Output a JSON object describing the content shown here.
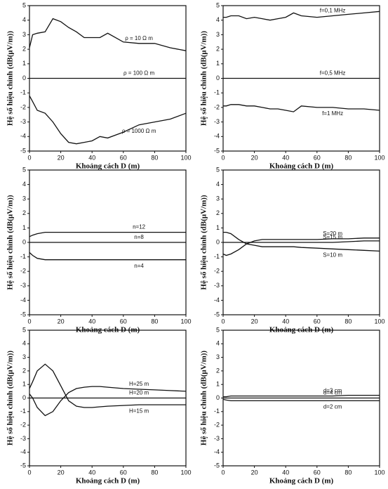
{
  "chart_data": [
    {
      "type": "line",
      "xlabel": "Khoảng cách D (m)",
      "ylabel": "Hệ số hiệu chỉnh (dB(μV/m))",
      "x": [
        0,
        2,
        5,
        10,
        15,
        20,
        25,
        30,
        35,
        40,
        45,
        50,
        60,
        70,
        80,
        90,
        100
      ],
      "xlim": [
        0,
        100
      ],
      "xticks": [
        0,
        20,
        40,
        60,
        80,
        100
      ],
      "ylim": [
        -5,
        5
      ],
      "yticks": [
        -5,
        -4,
        -3,
        -2,
        -1,
        0,
        1,
        2,
        3,
        4,
        5
      ],
      "series": [
        {
          "name": "ρ = 10 Ω m",
          "color": "#111",
          "values": [
            2.1,
            3.0,
            3.1,
            3.2,
            4.1,
            3.9,
            3.5,
            3.2,
            2.8,
            2.8,
            2.8,
            3.1,
            2.5,
            2.4,
            2.4,
            2.1,
            1.9
          ]
        },
        {
          "name": "ρ = 100 Ω m",
          "color": "#111",
          "values": [
            0,
            0,
            0,
            0,
            0,
            0,
            0,
            0,
            0,
            0,
            0,
            0,
            0,
            0,
            0,
            0,
            0
          ]
        },
        {
          "name": "ρ = 1000 Ω m",
          "color": "#111",
          "values": [
            -1.2,
            -1.6,
            -2.2,
            -2.4,
            -3.0,
            -3.8,
            -4.4,
            -4.5,
            -4.4,
            -4.3,
            -4.0,
            -4.1,
            -3.7,
            -3.2,
            -3.0,
            -2.8,
            -2.4
          ]
        }
      ]
    },
    {
      "type": "line",
      "xlabel": "Khoảng cách D (m)",
      "ylabel": "Hệ số hiệu chỉnh (dB(μV/m))",
      "x": [
        0,
        2,
        5,
        10,
        15,
        20,
        25,
        30,
        35,
        40,
        45,
        50,
        60,
        70,
        80,
        90,
        100
      ],
      "xlim": [
        0,
        100
      ],
      "xticks": [
        0,
        20,
        40,
        60,
        80,
        100
      ],
      "ylim": [
        -5,
        5
      ],
      "yticks": [
        -5,
        -4,
        -3,
        -2,
        -1,
        0,
        1,
        2,
        3,
        4,
        5
      ],
      "series": [
        {
          "name": "f=0,1 MHz",
          "color": "#111",
          "values": [
            4.2,
            4.2,
            4.3,
            4.3,
            4.1,
            4.2,
            4.1,
            4.0,
            4.1,
            4.2,
            4.5,
            4.3,
            4.2,
            4.3,
            4.4,
            4.5,
            4.6
          ]
        },
        {
          "name": "f=0,5 MHz",
          "color": "#111",
          "values": [
            0,
            0,
            0,
            0,
            0,
            0,
            0,
            0,
            0,
            0,
            0,
            0,
            0,
            0,
            0,
            0,
            0
          ]
        },
        {
          "name": "f=1 MHz",
          "color": "#111",
          "values": [
            -1.9,
            -1.9,
            -1.8,
            -1.8,
            -1.9,
            -1.9,
            -2.0,
            -2.1,
            -2.1,
            -2.2,
            -2.3,
            -1.9,
            -2.0,
            -2.0,
            -2.1,
            -2.1,
            -2.2
          ]
        }
      ]
    },
    {
      "type": "line",
      "xlabel": "Khoảng cách D (m)",
      "ylabel": "Hệ số hiệu chỉnh (dB(μV/m))",
      "x": [
        0,
        2,
        5,
        10,
        15,
        20,
        25,
        30,
        35,
        40,
        45,
        50,
        60,
        70,
        80,
        90,
        100
      ],
      "xlim": [
        0,
        100
      ],
      "xticks": [
        0,
        20,
        40,
        60,
        80,
        100
      ],
      "ylim": [
        -5,
        5
      ],
      "yticks": [
        -5,
        -4,
        -3,
        -2,
        -1,
        0,
        1,
        2,
        3,
        4,
        5
      ],
      "series": [
        {
          "name": "n=12",
          "color": "#111",
          "values": [
            0.4,
            0.5,
            0.6,
            0.7,
            0.7,
            0.7,
            0.7,
            0.7,
            0.7,
            0.7,
            0.7,
            0.7,
            0.7,
            0.7,
            0.7,
            0.7,
            0.7
          ]
        },
        {
          "name": "n=8",
          "color": "#111",
          "values": [
            0,
            0,
            0,
            0,
            0,
            0,
            0,
            0,
            0,
            0,
            0,
            0,
            0,
            0,
            0,
            0,
            0
          ]
        },
        {
          "name": "n=4",
          "color": "#111",
          "values": [
            -0.7,
            -0.9,
            -1.1,
            -1.2,
            -1.2,
            -1.2,
            -1.2,
            -1.2,
            -1.2,
            -1.2,
            -1.2,
            -1.2,
            -1.2,
            -1.2,
            -1.2,
            -1.2,
            -1.2
          ]
        }
      ]
    },
    {
      "type": "line",
      "xlabel": "Khoảng cách D (m)",
      "ylabel": "Hệ số hiệu chỉnh (dB(μV/m))",
      "x": [
        0,
        2,
        5,
        10,
        15,
        20,
        25,
        30,
        35,
        40,
        45,
        50,
        60,
        70,
        80,
        90,
        100
      ],
      "xlim": [
        0,
        100
      ],
      "xticks": [
        0,
        20,
        40,
        60,
        80,
        100
      ],
      "ylim": [
        -5,
        5
      ],
      "yticks": [
        -5,
        -4,
        -3,
        -2,
        -1,
        0,
        1,
        2,
        3,
        4,
        5
      ],
      "series": [
        {
          "name": "S=15 m",
          "color": "#111",
          "values": [
            0,
            0,
            0,
            0,
            0,
            0,
            0,
            0,
            0,
            0,
            0,
            0,
            0,
            0,
            0.05,
            0.1,
            0.1
          ]
        },
        {
          "name": "S=20 m",
          "color": "#111",
          "values": [
            -0.8,
            -0.9,
            -0.8,
            -0.5,
            -0.1,
            0.1,
            0.2,
            0.2,
            0.2,
            0.2,
            0.2,
            0.2,
            0.2,
            0.25,
            0.25,
            0.3,
            0.3
          ]
        },
        {
          "name": "S=10 m",
          "color": "#111",
          "values": [
            0.7,
            0.7,
            0.6,
            0.2,
            -0.1,
            -0.2,
            -0.3,
            -0.3,
            -0.3,
            -0.3,
            -0.3,
            -0.35,
            -0.4,
            -0.45,
            -0.5,
            -0.55,
            -0.6
          ]
        }
      ]
    },
    {
      "type": "line",
      "xlabel": "Khoảng cách D (m)",
      "ylabel": "Hệ số hiệu chỉnh (dB(μV/m))",
      "x": [
        0,
        2,
        5,
        10,
        15,
        20,
        25,
        30,
        35,
        40,
        45,
        50,
        60,
        70,
        80,
        90,
        100
      ],
      "xlim": [
        0,
        100
      ],
      "xticks": [
        0,
        20,
        40,
        60,
        80,
        100
      ],
      "ylim": [
        -5,
        5
      ],
      "yticks": [
        -5,
        -4,
        -3,
        -2,
        -1,
        0,
        1,
        2,
        3,
        4,
        5
      ],
      "series": [
        {
          "name": "H=25 m",
          "color": "#111",
          "values": [
            0.3,
            0,
            -0.7,
            -1.3,
            -1.0,
            -0.2,
            0.4,
            0.7,
            0.8,
            0.85,
            0.85,
            0.8,
            0.7,
            0.65,
            0.6,
            0.55,
            0.5
          ]
        },
        {
          "name": "H=20 m",
          "color": "#111",
          "values": [
            0,
            0,
            0,
            0,
            0,
            0,
            0,
            0,
            0,
            0,
            0,
            0,
            0,
            0,
            0,
            0,
            0
          ]
        },
        {
          "name": "H=15 m",
          "color": "#111",
          "values": [
            0.7,
            1.2,
            2.0,
            2.5,
            2.0,
            0.9,
            -0.2,
            -0.6,
            -0.7,
            -0.7,
            -0.65,
            -0.6,
            -0.55,
            -0.5,
            -0.5,
            -0.5,
            -0.5
          ]
        }
      ]
    },
    {
      "type": "line",
      "xlabel": "Khoảng cách D (m)",
      "ylabel": "Hệ số hiệu chỉnh (dB(μV/m))",
      "x": [
        0,
        2,
        5,
        10,
        15,
        20,
        25,
        30,
        35,
        40,
        45,
        50,
        60,
        70,
        80,
        90,
        100
      ],
      "xlim": [
        0,
        100
      ],
      "xticks": [
        0,
        20,
        40,
        60,
        80,
        100
      ],
      "ylim": [
        -5,
        5
      ],
      "yticks": [
        -5,
        -4,
        -3,
        -2,
        -1,
        0,
        1,
        2,
        3,
        4,
        5
      ],
      "series": [
        {
          "name": "d=3 cm",
          "color": "#111",
          "values": [
            0.1,
            0.1,
            0.15,
            0.15,
            0.15,
            0.15,
            0.15,
            0.15,
            0.15,
            0.15,
            0.15,
            0.15,
            0.15,
            0.15,
            0.2,
            0.2,
            0.2
          ]
        },
        {
          "name": "d=4 cm",
          "color": "#111",
          "values": [
            0,
            0,
            0,
            0,
            0,
            0,
            0,
            0,
            0,
            0,
            0,
            0,
            0,
            0,
            0,
            0,
            0
          ]
        },
        {
          "name": "d=2 cm",
          "color": "#111",
          "values": [
            -0.1,
            -0.15,
            -0.2,
            -0.2,
            -0.2,
            -0.2,
            -0.2,
            -0.2,
            -0.2,
            -0.2,
            -0.2,
            -0.2,
            -0.2,
            -0.2,
            -0.2,
            -0.2,
            -0.2
          ]
        }
      ]
    }
  ]
}
